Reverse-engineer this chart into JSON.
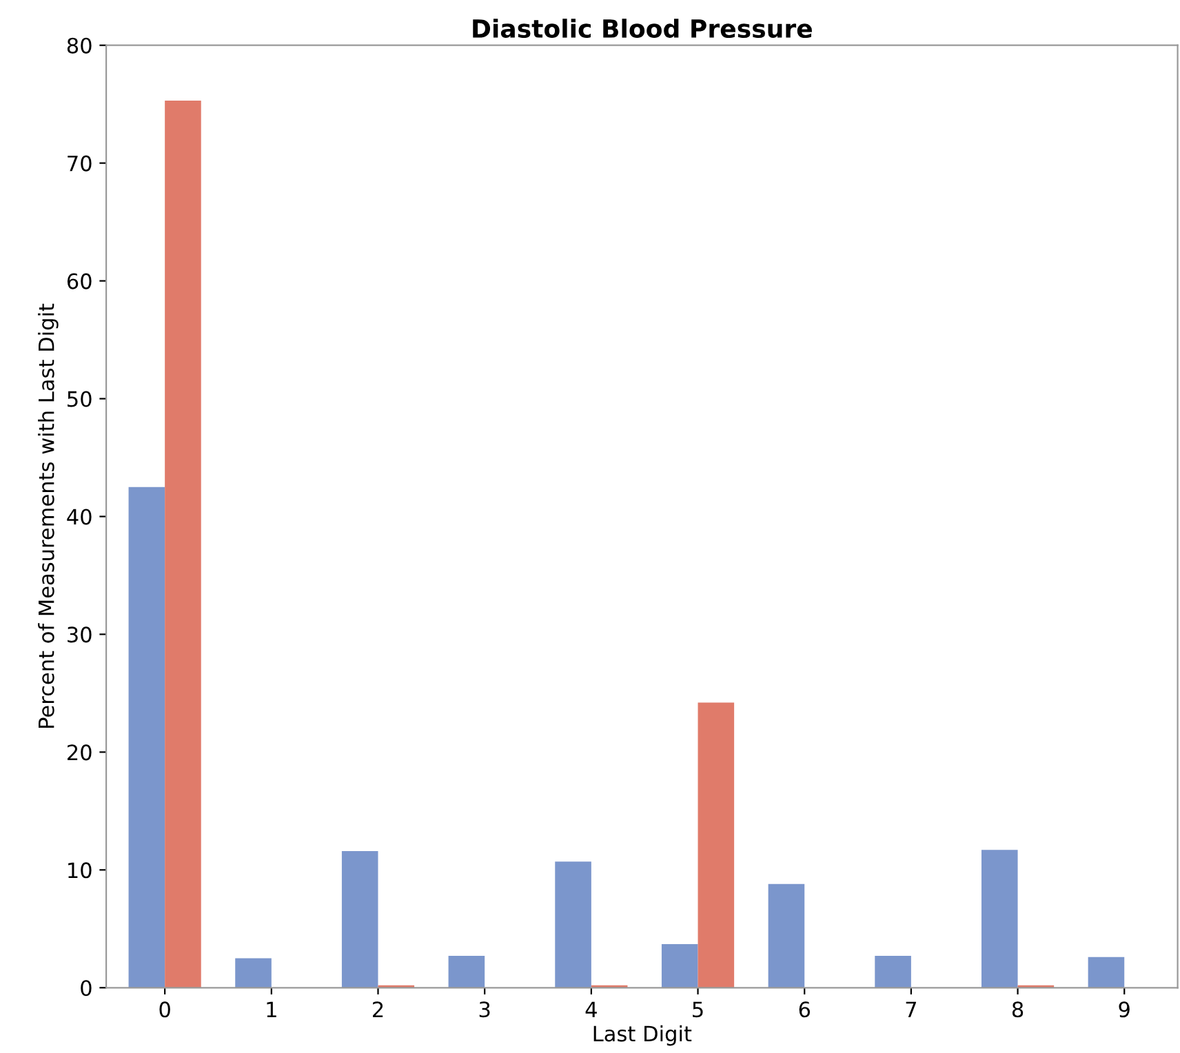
{
  "chart_data": {
    "type": "bar",
    "title": "Diastolic Blood Pressure",
    "xlabel": "Last Digit",
    "ylabel": "Percent of Measurements with Last Digit",
    "categories": [
      "0",
      "1",
      "2",
      "3",
      "4",
      "5",
      "6",
      "7",
      "8",
      "9"
    ],
    "series": [
      {
        "color": "#7b96cc",
        "values": [
          42.5,
          2.5,
          11.6,
          2.7,
          10.7,
          3.7,
          8.8,
          2.7,
          11.7,
          2.6
        ]
      },
      {
        "color": "#e07b6a",
        "values": [
          75.3,
          0,
          0.2,
          0,
          0.2,
          24.2,
          0,
          0,
          0.2,
          0
        ]
      }
    ],
    "ylim": [
      0,
      80
    ],
    "yticks": [
      0,
      10,
      20,
      30,
      40,
      50,
      60,
      70,
      80
    ],
    "grid": false,
    "legend": false
  }
}
